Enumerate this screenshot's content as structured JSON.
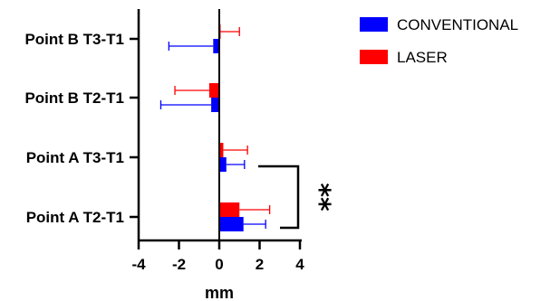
{
  "chart_data": {
    "type": "bar",
    "orientation": "horizontal",
    "categories": [
      "Point B T3-T1",
      "Point B T2-T1",
      "Point A T3-T1",
      "Point A T2-T1"
    ],
    "series": [
      {
        "name": "CONVENTIONAL",
        "color": "#0000ff",
        "values": [
          -0.3,
          -0.4,
          0.35,
          1.2
        ],
        "error": [
          2.2,
          2.5,
          0.9,
          1.1
        ]
      },
      {
        "name": "LASER",
        "color": "#ff0000",
        "values": [
          0.05,
          -0.5,
          0.2,
          1.0
        ],
        "error": [
          0.95,
          1.7,
          1.2,
          1.5
        ]
      }
    ],
    "xlabel": "mm",
    "xlim": [
      -4,
      4
    ],
    "xticks": [
      -4,
      -2,
      0,
      2,
      4
    ],
    "legend_position": "top-right",
    "annotation": {
      "text": "**",
      "between": [
        "Point A T3-T1",
        "Point A T2-T1"
      ]
    }
  }
}
